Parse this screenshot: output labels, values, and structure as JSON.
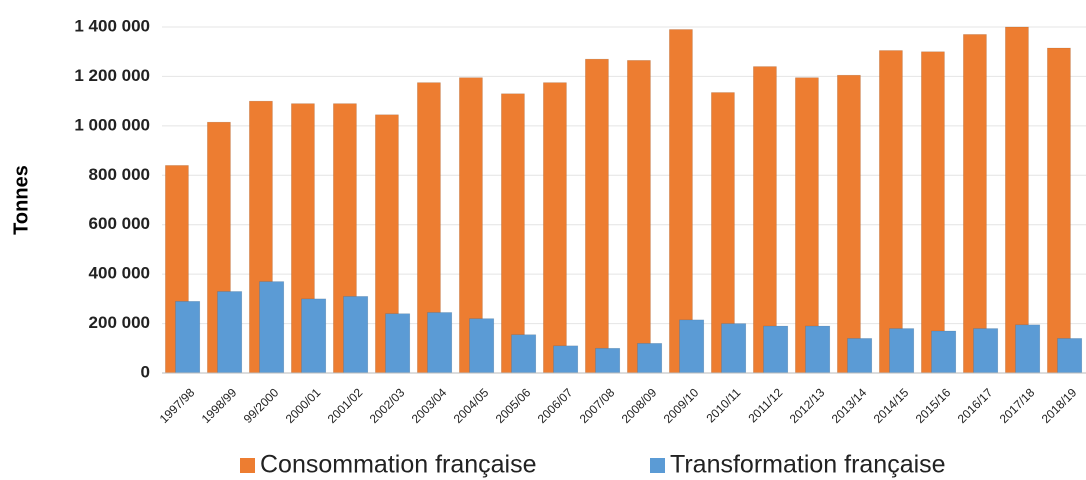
{
  "chart_data": {
    "type": "bar",
    "y_label": "Tonnes",
    "categories": [
      "1997/98",
      "1998/99",
      "99/2000",
      "2000/01",
      "2001/02",
      "2002/03",
      "2003/04",
      "2004/05",
      "2005/06",
      "2006/07",
      "2007/08",
      "2008/09",
      "2009/10",
      "2010/11",
      "2011/12",
      "2012/13",
      "2013/14",
      "2014/15",
      "2015/16",
      "2016/17",
      "2017/18",
      "2018/19"
    ],
    "series": [
      {
        "name": "Consommation française",
        "color": "#ed7d31",
        "values": [
          840000,
          1015000,
          1100000,
          1090000,
          1090000,
          1045000,
          1175000,
          1195000,
          1130000,
          1175000,
          1270000,
          1265000,
          1390000,
          1135000,
          1240000,
          1195000,
          1205000,
          1305000,
          1300000,
          1370000,
          1400000,
          1315000
        ]
      },
      {
        "name": "Transformation française",
        "color": "#5b9bd5",
        "values": [
          290000,
          330000,
          370000,
          300000,
          310000,
          240000,
          245000,
          220000,
          155000,
          110000,
          100000,
          120000,
          215000,
          200000,
          190000,
          190000,
          140000,
          180000,
          170000,
          180000,
          195000,
          140000
        ]
      }
    ],
    "ylim": [
      0,
      1400000
    ],
    "yticks": [
      0,
      {
        "value": 200000,
        "label": "200 000"
      },
      {
        "value": 400000,
        "label": "400 000"
      },
      {
        "value": 600000,
        "label": "600 000"
      },
      {
        "value": 800000,
        "label": "800 000"
      },
      {
        "value": 1000000,
        "label": "1 000 000"
      },
      {
        "value": 1200000,
        "label": "1 200 000"
      },
      {
        "value": 1400000,
        "label": "1 400 000"
      }
    ],
    "grid": true,
    "legend": "bottom"
  }
}
